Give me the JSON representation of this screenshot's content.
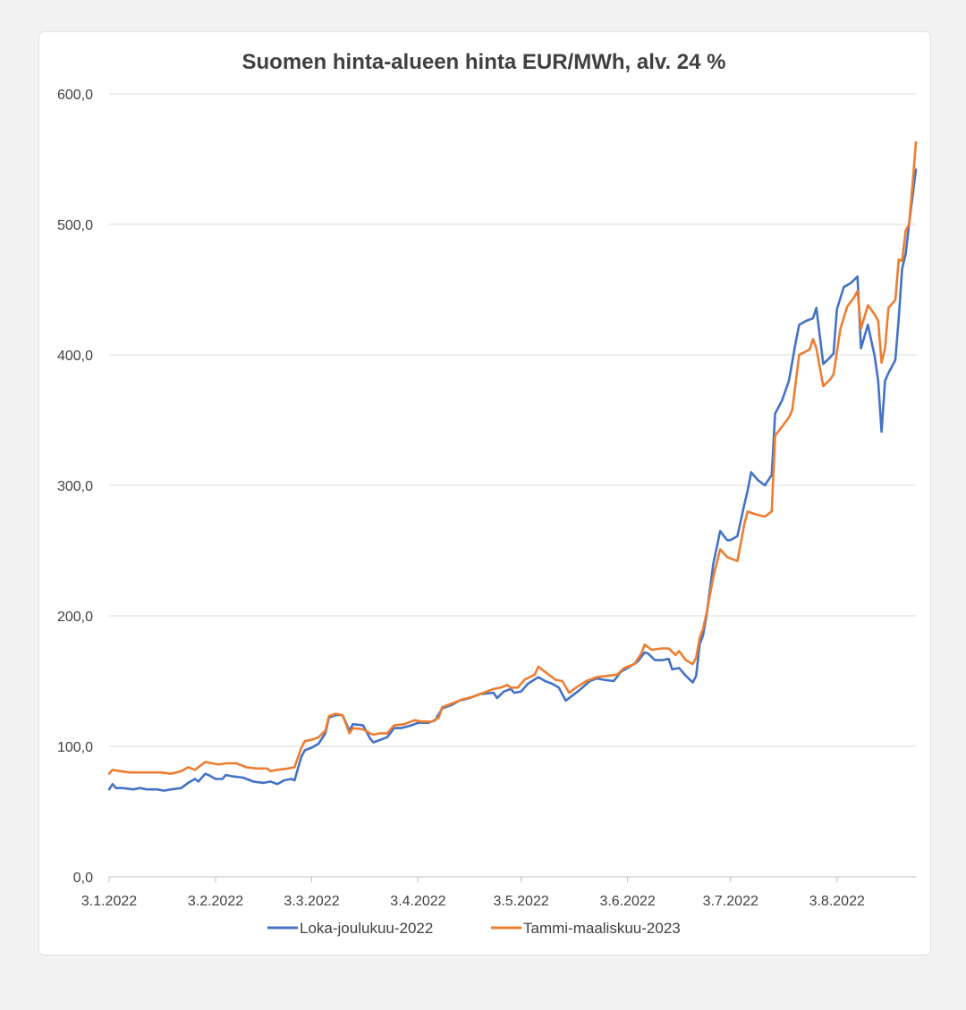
{
  "chart_data": {
    "type": "line",
    "title": "Suomen hinta-alueen hinta EUR/MWh, alv. 24 %",
    "xlabel": "",
    "ylabel": "",
    "ylim": [
      0,
      600
    ],
    "y_ticks": [
      "0,0",
      "100,0",
      "200,0",
      "300,0",
      "400,0",
      "500,0",
      "600,0"
    ],
    "x_ticks": [
      {
        "label": "3.1.2022",
        "date": "2022-01-03"
      },
      {
        "label": "3.2.2022",
        "date": "2022-02-03"
      },
      {
        "label": "3.3.2022",
        "date": "2022-03-03"
      },
      {
        "label": "3.4.2022",
        "date": "2022-04-03"
      },
      {
        "label": "3.5.2022",
        "date": "2022-05-03"
      },
      {
        "label": "3.6.2022",
        "date": "2022-06-03"
      },
      {
        "label": "3.7.2022",
        "date": "2022-07-03"
      },
      {
        "label": "3.8.2022",
        "date": "2022-08-03"
      }
    ],
    "x_range": [
      "2022-01-03",
      "2022-08-26"
    ],
    "grid": "horizontal",
    "legend_position": "bottom",
    "series": [
      {
        "name": "Loka-joulukuu-2022",
        "color": "#4472c4",
        "points": [
          [
            "2022-01-03",
            67
          ],
          [
            "2022-01-04",
            71
          ],
          [
            "2022-01-05",
            68
          ],
          [
            "2022-01-07",
            68
          ],
          [
            "2022-01-10",
            67
          ],
          [
            "2022-01-12",
            68
          ],
          [
            "2022-01-14",
            67
          ],
          [
            "2022-01-17",
            67
          ],
          [
            "2022-01-19",
            66
          ],
          [
            "2022-01-21",
            67
          ],
          [
            "2022-01-24",
            68
          ],
          [
            "2022-01-26",
            72
          ],
          [
            "2022-01-28",
            75
          ],
          [
            "2022-01-29",
            73
          ],
          [
            "2022-01-31",
            79
          ],
          [
            "2022-02-01",
            78
          ],
          [
            "2022-02-03",
            75
          ],
          [
            "2022-02-05",
            75
          ],
          [
            "2022-02-06",
            78
          ],
          [
            "2022-02-08",
            77
          ],
          [
            "2022-02-11",
            76
          ],
          [
            "2022-02-14",
            73
          ],
          [
            "2022-02-17",
            72
          ],
          [
            "2022-02-19",
            73
          ],
          [
            "2022-02-21",
            71
          ],
          [
            "2022-02-23",
            74
          ],
          [
            "2022-02-25",
            75
          ],
          [
            "2022-02-26",
            74
          ],
          [
            "2022-02-28",
            92
          ],
          [
            "2022-03-01",
            97
          ],
          [
            "2022-03-03",
            99
          ],
          [
            "2022-03-05",
            102
          ],
          [
            "2022-03-07",
            110
          ],
          [
            "2022-03-08",
            122
          ],
          [
            "2022-03-10",
            124
          ],
          [
            "2022-03-12",
            124
          ],
          [
            "2022-03-14",
            112
          ],
          [
            "2022-03-15",
            117
          ],
          [
            "2022-03-18",
            116
          ],
          [
            "2022-03-20",
            106
          ],
          [
            "2022-03-21",
            103
          ],
          [
            "2022-03-23",
            105
          ],
          [
            "2022-03-25",
            107
          ],
          [
            "2022-03-27",
            114
          ],
          [
            "2022-03-29",
            114
          ],
          [
            "2022-04-01",
            116
          ],
          [
            "2022-04-03",
            118
          ],
          [
            "2022-04-06",
            118
          ],
          [
            "2022-04-08",
            120
          ],
          [
            "2022-04-10",
            129
          ],
          [
            "2022-04-13",
            132
          ],
          [
            "2022-04-15",
            135
          ],
          [
            "2022-04-18",
            137
          ],
          [
            "2022-04-21",
            140
          ],
          [
            "2022-04-25",
            141
          ],
          [
            "2022-04-26",
            137
          ],
          [
            "2022-04-28",
            142
          ],
          [
            "2022-04-30",
            144
          ],
          [
            "2022-05-01",
            141
          ],
          [
            "2022-05-03",
            142
          ],
          [
            "2022-05-05",
            148
          ],
          [
            "2022-05-08",
            153
          ],
          [
            "2022-05-10",
            150
          ],
          [
            "2022-05-12",
            148
          ],
          [
            "2022-05-14",
            145
          ],
          [
            "2022-05-16",
            135
          ],
          [
            "2022-05-18",
            139
          ],
          [
            "2022-05-20",
            143
          ],
          [
            "2022-05-23",
            150
          ],
          [
            "2022-05-25",
            152
          ],
          [
            "2022-05-27",
            151
          ],
          [
            "2022-05-30",
            150
          ],
          [
            "2022-06-01",
            157
          ],
          [
            "2022-06-03",
            160
          ],
          [
            "2022-06-06",
            165
          ],
          [
            "2022-06-08",
            172
          ],
          [
            "2022-06-09",
            171
          ],
          [
            "2022-06-11",
            166
          ],
          [
            "2022-06-13",
            166
          ],
          [
            "2022-06-15",
            167
          ],
          [
            "2022-06-16",
            159
          ],
          [
            "2022-06-18",
            160
          ],
          [
            "2022-06-20",
            154
          ],
          [
            "2022-06-22",
            149
          ],
          [
            "2022-06-23",
            154
          ],
          [
            "2022-06-24",
            178
          ],
          [
            "2022-06-25",
            185
          ],
          [
            "2022-06-26",
            200
          ],
          [
            "2022-06-28",
            240
          ],
          [
            "2022-06-30",
            265
          ],
          [
            "2022-07-02",
            258
          ],
          [
            "2022-07-03",
            258
          ],
          [
            "2022-07-05",
            261
          ],
          [
            "2022-07-07",
            285
          ],
          [
            "2022-07-08",
            296
          ],
          [
            "2022-07-09",
            310
          ],
          [
            "2022-07-11",
            304
          ],
          [
            "2022-07-13",
            300
          ],
          [
            "2022-07-15",
            308
          ],
          [
            "2022-07-16",
            355
          ],
          [
            "2022-07-18",
            365
          ],
          [
            "2022-07-20",
            380
          ],
          [
            "2022-07-22",
            410
          ],
          [
            "2022-07-23",
            423
          ],
          [
            "2022-07-25",
            426
          ],
          [
            "2022-07-27",
            428
          ],
          [
            "2022-07-28",
            436
          ],
          [
            "2022-07-30",
            393
          ],
          [
            "2022-08-01",
            398
          ],
          [
            "2022-08-02",
            401
          ],
          [
            "2022-08-03",
            435
          ],
          [
            "2022-08-05",
            452
          ],
          [
            "2022-08-07",
            455
          ],
          [
            "2022-08-09",
            460
          ],
          [
            "2022-08-10",
            405
          ],
          [
            "2022-08-12",
            423
          ],
          [
            "2022-08-14",
            399
          ],
          [
            "2022-08-15",
            380
          ],
          [
            "2022-08-16",
            341
          ],
          [
            "2022-08-17",
            380
          ],
          [
            "2022-08-18",
            386
          ],
          [
            "2022-08-20",
            396
          ],
          [
            "2022-08-21",
            428
          ],
          [
            "2022-08-22",
            466
          ],
          [
            "2022-08-23",
            477
          ],
          [
            "2022-08-24",
            500
          ],
          [
            "2022-08-26",
            542
          ]
        ]
      },
      {
        "name": "Tammi-maaliskuu-2023",
        "color": "#ed7d31",
        "points": [
          [
            "2022-01-03",
            79
          ],
          [
            "2022-01-04",
            82
          ],
          [
            "2022-01-06",
            81
          ],
          [
            "2022-01-09",
            80
          ],
          [
            "2022-01-12",
            80
          ],
          [
            "2022-01-15",
            80
          ],
          [
            "2022-01-18",
            80
          ],
          [
            "2022-01-21",
            79
          ],
          [
            "2022-01-24",
            81
          ],
          [
            "2022-01-26",
            84
          ],
          [
            "2022-01-28",
            82
          ],
          [
            "2022-01-31",
            88
          ],
          [
            "2022-02-02",
            87
          ],
          [
            "2022-02-04",
            86
          ],
          [
            "2022-02-06",
            87
          ],
          [
            "2022-02-09",
            87
          ],
          [
            "2022-02-12",
            84
          ],
          [
            "2022-02-15",
            83
          ],
          [
            "2022-02-18",
            83
          ],
          [
            "2022-02-19",
            81
          ],
          [
            "2022-02-21",
            82
          ],
          [
            "2022-02-24",
            83
          ],
          [
            "2022-02-26",
            84
          ],
          [
            "2022-02-28",
            99
          ],
          [
            "2022-03-01",
            104
          ],
          [
            "2022-03-03",
            105
          ],
          [
            "2022-03-05",
            107
          ],
          [
            "2022-03-07",
            112
          ],
          [
            "2022-03-08",
            123
          ],
          [
            "2022-03-10",
            125
          ],
          [
            "2022-03-12",
            124
          ],
          [
            "2022-03-14",
            110
          ],
          [
            "2022-03-15",
            114
          ],
          [
            "2022-03-18",
            113
          ],
          [
            "2022-03-20",
            110
          ],
          [
            "2022-03-21",
            109
          ],
          [
            "2022-03-23",
            110
          ],
          [
            "2022-03-25",
            110
          ],
          [
            "2022-03-27",
            116
          ],
          [
            "2022-03-30",
            117
          ],
          [
            "2022-04-02",
            120
          ],
          [
            "2022-04-04",
            119
          ],
          [
            "2022-04-07",
            119
          ],
          [
            "2022-04-09",
            122
          ],
          [
            "2022-04-10",
            130
          ],
          [
            "2022-04-13",
            133
          ],
          [
            "2022-04-16",
            136
          ],
          [
            "2022-04-19",
            138
          ],
          [
            "2022-04-22",
            141
          ],
          [
            "2022-04-25",
            144
          ],
          [
            "2022-04-27",
            145
          ],
          [
            "2022-04-29",
            147
          ],
          [
            "2022-04-30",
            145
          ],
          [
            "2022-05-02",
            145
          ],
          [
            "2022-05-04",
            151
          ],
          [
            "2022-05-07",
            155
          ],
          [
            "2022-05-08",
            161
          ],
          [
            "2022-05-10",
            157
          ],
          [
            "2022-05-13",
            151
          ],
          [
            "2022-05-15",
            150
          ],
          [
            "2022-05-17",
            141
          ],
          [
            "2022-05-19",
            145
          ],
          [
            "2022-05-22",
            150
          ],
          [
            "2022-05-25",
            153
          ],
          [
            "2022-05-28",
            154
          ],
          [
            "2022-05-31",
            155
          ],
          [
            "2022-06-02",
            160
          ],
          [
            "2022-06-05",
            163
          ],
          [
            "2022-06-07",
            171
          ],
          [
            "2022-06-08",
            178
          ],
          [
            "2022-06-10",
            174
          ],
          [
            "2022-06-13",
            175
          ],
          [
            "2022-06-15",
            175
          ],
          [
            "2022-06-17",
            170
          ],
          [
            "2022-06-18",
            173
          ],
          [
            "2022-06-20",
            166
          ],
          [
            "2022-06-22",
            163
          ],
          [
            "2022-06-23",
            168
          ],
          [
            "2022-06-24",
            183
          ],
          [
            "2022-06-25",
            190
          ],
          [
            "2022-06-26",
            202
          ],
          [
            "2022-06-28",
            230
          ],
          [
            "2022-06-30",
            251
          ],
          [
            "2022-07-02",
            245
          ],
          [
            "2022-07-04",
            243
          ],
          [
            "2022-07-05",
            242
          ],
          [
            "2022-07-07",
            270
          ],
          [
            "2022-07-08",
            280
          ],
          [
            "2022-07-10",
            278
          ],
          [
            "2022-07-13",
            276
          ],
          [
            "2022-07-15",
            280
          ],
          [
            "2022-07-16",
            338
          ],
          [
            "2022-07-18",
            345
          ],
          [
            "2022-07-20",
            352
          ],
          [
            "2022-07-21",
            358
          ],
          [
            "2022-07-23",
            400
          ],
          [
            "2022-07-26",
            404
          ],
          [
            "2022-07-27",
            412
          ],
          [
            "2022-07-28",
            405
          ],
          [
            "2022-07-30",
            376
          ],
          [
            "2022-08-01",
            381
          ],
          [
            "2022-08-02",
            385
          ],
          [
            "2022-08-04",
            420
          ],
          [
            "2022-08-06",
            437
          ],
          [
            "2022-08-08",
            444
          ],
          [
            "2022-08-09",
            449
          ],
          [
            "2022-08-10",
            420
          ],
          [
            "2022-08-12",
            438
          ],
          [
            "2022-08-14",
            431
          ],
          [
            "2022-08-15",
            426
          ],
          [
            "2022-08-16",
            394
          ],
          [
            "2022-08-17",
            405
          ],
          [
            "2022-08-18",
            436
          ],
          [
            "2022-08-20",
            442
          ],
          [
            "2022-08-21",
            473
          ],
          [
            "2022-08-22",
            472
          ],
          [
            "2022-08-23",
            495
          ],
          [
            "2022-08-24",
            500
          ],
          [
            "2022-08-25",
            530
          ],
          [
            "2022-08-26",
            563
          ]
        ]
      }
    ]
  }
}
